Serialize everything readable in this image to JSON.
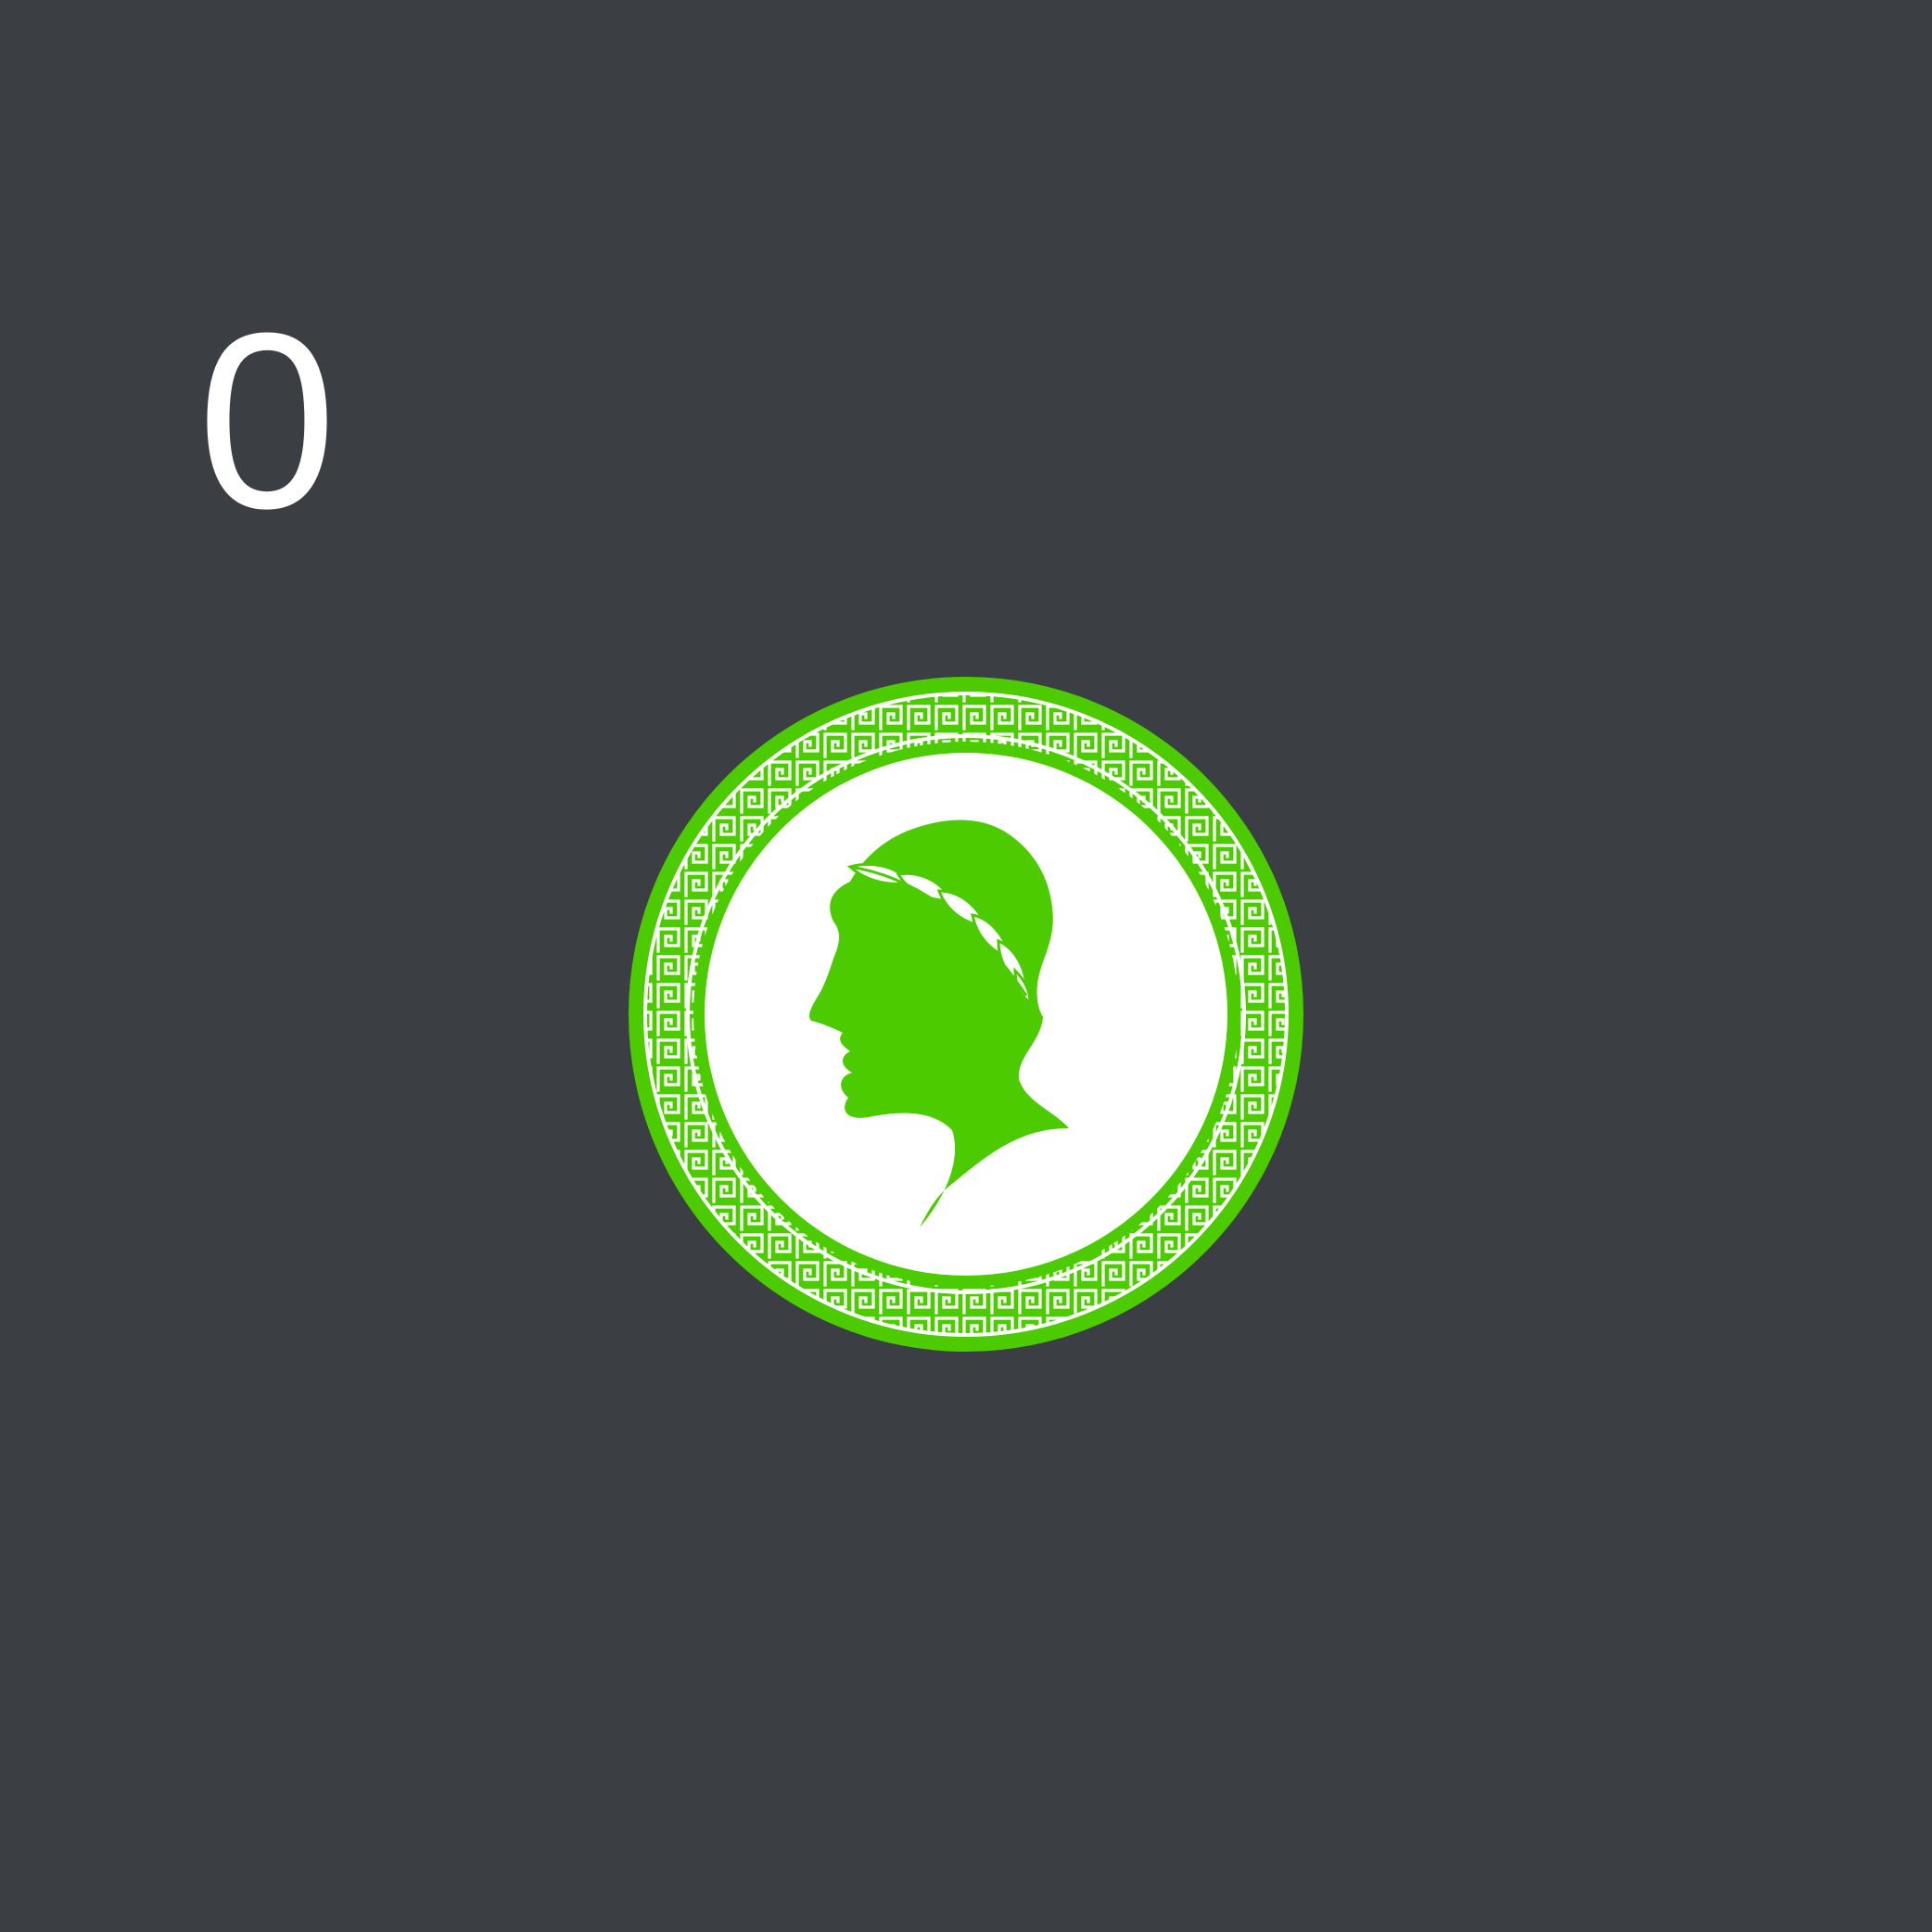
{
  "score": {
    "value": "0"
  },
  "coin": {
    "icon": "laurel-profile-coin-icon",
    "colors": {
      "green": "#4ccc00",
      "white": "#ffffff",
      "background": "#3b3e42"
    }
  }
}
